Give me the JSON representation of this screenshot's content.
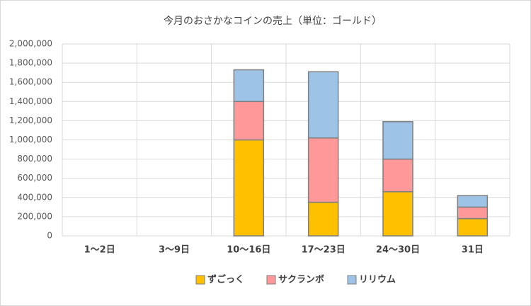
{
  "chart_data": {
    "type": "stacked-bar",
    "title": "今月のおさかなコインの売上（単位：ゴールド）",
    "categories": [
      "1〜2日",
      "3〜9日",
      "10〜16日",
      "17〜23日",
      "24〜30日",
      "31日"
    ],
    "series": [
      {
        "name": "ずごっく",
        "color": "#FFC000",
        "values": [
          0,
          0,
          1000000,
          350000,
          460000,
          180000
        ]
      },
      {
        "name": "サクランボ",
        "color": "#FF9999",
        "values": [
          0,
          0,
          400000,
          670000,
          340000,
          120000
        ]
      },
      {
        "name": "リリウム",
        "color": "#9DC3E6",
        "values": [
          0,
          0,
          330000,
          690000,
          390000,
          120000
        ]
      }
    ],
    "ylim": [
      0,
      2000000
    ],
    "yticks": [
      0,
      {
        "value": 200000,
        "label": "200,000"
      },
      {
        "value": 400000,
        "label": "400,000"
      },
      {
        "value": 600000,
        "label": "600,000"
      },
      {
        "value": 800000,
        "label": "800,000"
      },
      {
        "value": 1000000,
        "label": "1,000,000"
      },
      {
        "value": 1200000,
        "label": "1,200,000"
      },
      {
        "value": 1400000,
        "label": "1,400,000"
      },
      {
        "value": 1600000,
        "label": "1,600,000"
      },
      {
        "value": 1800000,
        "label": "1,800,000"
      },
      {
        "value": 2000000,
        "label": "2,000,000"
      }
    ],
    "grid": true,
    "legend": "bottom"
  }
}
